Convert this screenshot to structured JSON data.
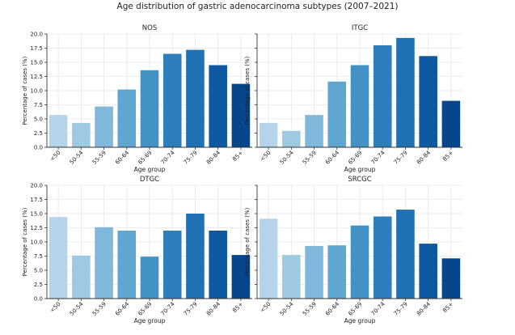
{
  "figure": {
    "title": "Age distribution of gastric adenocarcinoma subtypes (2007–2021)"
  },
  "chart_data": [
    {
      "type": "bar",
      "title": "NOS",
      "xlabel": "Age group",
      "ylabel": "Percentage of cases (%)",
      "categories": [
        "<50",
        "50-54",
        "55-59",
        "60-64",
        "65-69",
        "70-74",
        "75-79",
        "80-84",
        "85+"
      ],
      "values": [
        5.7,
        4.3,
        7.2,
        10.2,
        13.6,
        16.5,
        17.2,
        14.5,
        11.2
      ],
      "ylim": [
        0,
        20
      ],
      "yticks": [
        "0.0",
        "2.5",
        "5.0",
        "7.5",
        "10.0",
        "12.5",
        "15.0",
        "17.5",
        "20.0"
      ],
      "show_ytick_labels": true,
      "grid": true
    },
    {
      "type": "bar",
      "title": "ITGC",
      "xlabel": "Age group",
      "ylabel": "Percentage of cases (%)",
      "categories": [
        "<50",
        "50-54",
        "55-59",
        "60-64",
        "65-69",
        "70-74",
        "75-79",
        "80-84",
        "85+"
      ],
      "values": [
        4.3,
        2.9,
        5.7,
        11.6,
        14.5,
        18.0,
        19.3,
        16.1,
        8.2
      ],
      "ylim": [
        0,
        20
      ],
      "yticks": [
        "0.0",
        "2.5",
        "5.0",
        "7.5",
        "10.0",
        "12.5",
        "15.0",
        "17.5",
        "20.0"
      ],
      "show_ytick_labels": false,
      "grid": true
    },
    {
      "type": "bar",
      "title": "DTGC",
      "xlabel": "Age group",
      "ylabel": "Percentage of cases (%)",
      "categories": [
        "<50",
        "50-54",
        "55-59",
        "60-64",
        "65-69",
        "70-74",
        "75-79",
        "80-84",
        "85+"
      ],
      "values": [
        14.4,
        7.6,
        12.6,
        12.0,
        7.4,
        12.0,
        15.0,
        12.0,
        7.7
      ],
      "ylim": [
        0,
        20
      ],
      "yticks": [
        "0.0",
        "2.5",
        "5.0",
        "7.5",
        "10.0",
        "12.5",
        "15.0",
        "17.5",
        "20.0"
      ],
      "show_ytick_labels": true,
      "grid": true
    },
    {
      "type": "bar",
      "title": "SRCGC",
      "xlabel": "Age group",
      "ylabel": "Percentage of cases (%)",
      "categories": [
        "<50",
        "50-54",
        "55-59",
        "60-64",
        "65-69",
        "70-74",
        "75-79",
        "80-84",
        "85+"
      ],
      "values": [
        14.1,
        7.7,
        9.3,
        9.4,
        12.9,
        14.5,
        15.7,
        9.7,
        7.1
      ],
      "ylim": [
        0,
        20
      ],
      "yticks": [
        "0.0",
        "2.5",
        "5.0",
        "7.5",
        "10.0",
        "12.5",
        "15.0",
        "17.5",
        "20.0"
      ],
      "show_ytick_labels": false,
      "grid": true
    }
  ],
  "colors": {
    "bars": [
      "#b5d4e9",
      "#9ecae1",
      "#7fb8da",
      "#5fa6d1",
      "#4292c6",
      "#2f7ebc",
      "#2070b4",
      "#0e59a2",
      "#08468b"
    ],
    "grid": "#e6e6e6",
    "axis": "#333333",
    "text": "#222222"
  }
}
